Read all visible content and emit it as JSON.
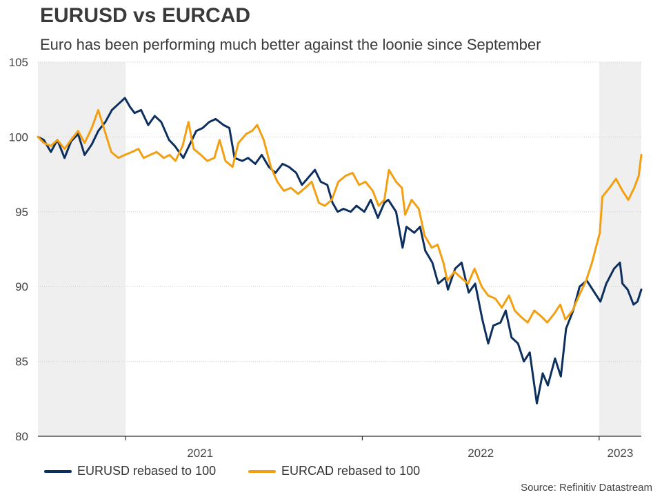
{
  "header": {
    "title": "EURUSD vs EURCAD",
    "subtitle": "Euro has been performing much better against the loonie since September"
  },
  "footer": {
    "source": "Source: Refinitiv Datastream"
  },
  "colors": {
    "eurusd": "#0d2f5e",
    "eurcad": "#f2a012",
    "shade": "#efefef",
    "grid": "#cccccc",
    "axis": "#333333"
  },
  "chart_data": {
    "type": "line",
    "x_unit": "date",
    "xlim": [
      "2020-08-19",
      "2023-03-07"
    ],
    "ylim": [
      80,
      105
    ],
    "yticks": [
      80,
      85,
      90,
      95,
      100,
      105
    ],
    "xticks": [
      {
        "date": "2021-01-01",
        "label": "2021"
      },
      {
        "date": "2022-01-01",
        "label": "2022"
      },
      {
        "date": "2023-01-01",
        "label": "2023"
      }
    ],
    "shaded_ranges": [
      [
        "2020-08-19",
        "2021-01-01"
      ],
      [
        "2023-01-01",
        "2023-03-07"
      ]
    ],
    "grid": "horizontal dotted",
    "legend_position": "bottom-left",
    "series": [
      {
        "name": "EURUSD rebased to 100",
        "color": "#0d2f5e",
        "points": [
          [
            "2020-08-19",
            100.0
          ],
          [
            "2020-08-28",
            99.8
          ],
          [
            "2020-09-08",
            99.0
          ],
          [
            "2020-09-18",
            99.8
          ],
          [
            "2020-09-29",
            98.6
          ],
          [
            "2020-10-09",
            99.7
          ],
          [
            "2020-10-20",
            100.2
          ],
          [
            "2020-10-30",
            98.8
          ],
          [
            "2020-11-10",
            99.5
          ],
          [
            "2020-11-20",
            100.4
          ],
          [
            "2020-12-01",
            101.0
          ],
          [
            "2020-12-11",
            101.8
          ],
          [
            "2020-12-21",
            102.2
          ],
          [
            "2020-12-31",
            102.6
          ],
          [
            "2021-01-08",
            102.0
          ],
          [
            "2021-01-15",
            101.6
          ],
          [
            "2021-01-25",
            101.8
          ],
          [
            "2021-02-05",
            100.8
          ],
          [
            "2021-02-15",
            101.4
          ],
          [
            "2021-02-25",
            101.0
          ],
          [
            "2021-03-09",
            99.8
          ],
          [
            "2021-03-18",
            99.4
          ],
          [
            "2021-03-31",
            98.6
          ],
          [
            "2021-04-09",
            99.4
          ],
          [
            "2021-04-20",
            100.4
          ],
          [
            "2021-04-30",
            100.6
          ],
          [
            "2021-05-10",
            101.0
          ],
          [
            "2021-05-20",
            101.2
          ],
          [
            "2021-06-01",
            100.8
          ],
          [
            "2021-06-10",
            100.6
          ],
          [
            "2021-06-18",
            98.6
          ],
          [
            "2021-06-30",
            98.4
          ],
          [
            "2021-07-09",
            98.6
          ],
          [
            "2021-07-20",
            98.2
          ],
          [
            "2021-07-30",
            98.8
          ],
          [
            "2021-08-10",
            98.0
          ],
          [
            "2021-08-20",
            97.6
          ],
          [
            "2021-08-31",
            98.2
          ],
          [
            "2021-09-10",
            98.0
          ],
          [
            "2021-09-21",
            97.6
          ],
          [
            "2021-09-30",
            96.8
          ],
          [
            "2021-10-08",
            97.2
          ],
          [
            "2021-10-20",
            97.8
          ],
          [
            "2021-10-29",
            97.0
          ],
          [
            "2021-11-08",
            96.8
          ],
          [
            "2021-11-16",
            95.6
          ],
          [
            "2021-11-24",
            95.0
          ],
          [
            "2021-12-03",
            95.2
          ],
          [
            "2021-12-14",
            95.0
          ],
          [
            "2021-12-23",
            95.4
          ],
          [
            "2022-01-04",
            95.0
          ],
          [
            "2022-01-14",
            95.8
          ],
          [
            "2022-01-25",
            94.6
          ],
          [
            "2022-02-04",
            95.6
          ],
          [
            "2022-02-10",
            95.8
          ],
          [
            "2022-02-22",
            95.0
          ],
          [
            "2022-03-04",
            92.6
          ],
          [
            "2022-03-10",
            94.0
          ],
          [
            "2022-03-22",
            93.6
          ],
          [
            "2022-03-31",
            94.0
          ],
          [
            "2022-04-08",
            92.4
          ],
          [
            "2022-04-19",
            91.6
          ],
          [
            "2022-04-28",
            90.2
          ],
          [
            "2022-05-09",
            90.6
          ],
          [
            "2022-05-13",
            89.8
          ],
          [
            "2022-05-24",
            91.2
          ],
          [
            "2022-06-03",
            91.6
          ],
          [
            "2022-06-14",
            89.6
          ],
          [
            "2022-06-24",
            90.2
          ],
          [
            "2022-07-05",
            87.8
          ],
          [
            "2022-07-14",
            86.2
          ],
          [
            "2022-07-22",
            87.4
          ],
          [
            "2022-08-02",
            87.6
          ],
          [
            "2022-08-10",
            88.4
          ],
          [
            "2022-08-19",
            86.6
          ],
          [
            "2022-08-29",
            86.2
          ],
          [
            "2022-09-07",
            85.0
          ],
          [
            "2022-09-16",
            85.6
          ],
          [
            "2022-09-27",
            82.2
          ],
          [
            "2022-10-06",
            84.2
          ],
          [
            "2022-10-14",
            83.4
          ],
          [
            "2022-10-25",
            85.2
          ],
          [
            "2022-11-03",
            84.0
          ],
          [
            "2022-11-11",
            87.2
          ],
          [
            "2022-11-22",
            88.4
          ],
          [
            "2022-12-02",
            90.0
          ],
          [
            "2022-12-13",
            90.4
          ],
          [
            "2022-12-22",
            89.8
          ],
          [
            "2023-01-03",
            89.0
          ],
          [
            "2023-01-12",
            90.2
          ],
          [
            "2023-01-24",
            91.2
          ],
          [
            "2023-02-02",
            91.6
          ],
          [
            "2023-02-06",
            90.2
          ],
          [
            "2023-02-14",
            89.8
          ],
          [
            "2023-02-23",
            88.8
          ],
          [
            "2023-03-01",
            89.0
          ],
          [
            "2023-03-07",
            89.8
          ]
        ]
      },
      {
        "name": "EURCAD rebased to 100",
        "color": "#f2a012",
        "points": [
          [
            "2020-08-19",
            100.0
          ],
          [
            "2020-08-28",
            99.6
          ],
          [
            "2020-09-08",
            99.4
          ],
          [
            "2020-09-18",
            99.8
          ],
          [
            "2020-09-29",
            99.2
          ],
          [
            "2020-10-09",
            99.8
          ],
          [
            "2020-10-20",
            100.4
          ],
          [
            "2020-10-30",
            99.6
          ],
          [
            "2020-11-10",
            100.6
          ],
          [
            "2020-11-20",
            101.8
          ],
          [
            "2020-11-30",
            100.4
          ],
          [
            "2020-12-10",
            99.0
          ],
          [
            "2020-12-21",
            98.6
          ],
          [
            "2020-12-31",
            98.8
          ],
          [
            "2021-01-11",
            99.0
          ],
          [
            "2021-01-21",
            99.2
          ],
          [
            "2021-01-29",
            98.6
          ],
          [
            "2021-02-08",
            98.8
          ],
          [
            "2021-02-18",
            99.0
          ],
          [
            "2021-03-01",
            98.6
          ],
          [
            "2021-03-10",
            98.8
          ],
          [
            "2021-03-19",
            98.4
          ],
          [
            "2021-03-30",
            99.4
          ],
          [
            "2021-04-08",
            101.0
          ],
          [
            "2021-04-16",
            99.2
          ],
          [
            "2021-04-27",
            98.8
          ],
          [
            "2021-05-07",
            98.4
          ],
          [
            "2021-05-18",
            98.6
          ],
          [
            "2021-05-26",
            99.8
          ],
          [
            "2021-06-04",
            98.4
          ],
          [
            "2021-06-15",
            98.0
          ],
          [
            "2021-06-24",
            99.6
          ],
          [
            "2021-07-06",
            100.2
          ],
          [
            "2021-07-15",
            100.4
          ],
          [
            "2021-07-23",
            100.8
          ],
          [
            "2021-08-02",
            99.8
          ],
          [
            "2021-08-13",
            98.0
          ],
          [
            "2021-08-23",
            97.0
          ],
          [
            "2021-09-02",
            96.4
          ],
          [
            "2021-09-13",
            96.6
          ],
          [
            "2021-09-24",
            96.2
          ],
          [
            "2021-10-05",
            96.6
          ],
          [
            "2021-10-15",
            97.0
          ],
          [
            "2021-10-26",
            95.6
          ],
          [
            "2021-11-04",
            95.4
          ],
          [
            "2021-11-15",
            95.8
          ],
          [
            "2021-11-25",
            97.0
          ],
          [
            "2021-12-06",
            97.4
          ],
          [
            "2021-12-17",
            97.6
          ],
          [
            "2021-12-27",
            96.8
          ],
          [
            "2022-01-06",
            97.0
          ],
          [
            "2022-01-17",
            96.4
          ],
          [
            "2022-01-26",
            95.4
          ],
          [
            "2022-02-04",
            95.8
          ],
          [
            "2022-02-11",
            97.8
          ],
          [
            "2022-02-22",
            97.0
          ],
          [
            "2022-03-03",
            96.6
          ],
          [
            "2022-03-08",
            94.8
          ],
          [
            "2022-03-18",
            95.8
          ],
          [
            "2022-03-29",
            95.2
          ],
          [
            "2022-04-07",
            93.4
          ],
          [
            "2022-04-18",
            92.6
          ],
          [
            "2022-04-27",
            92.8
          ],
          [
            "2022-05-06",
            91.6
          ],
          [
            "2022-05-12",
            90.4
          ],
          [
            "2022-05-23",
            91.0
          ],
          [
            "2022-06-02",
            90.6
          ],
          [
            "2022-06-13",
            90.2
          ],
          [
            "2022-06-23",
            91.2
          ],
          [
            "2022-07-04",
            90.0
          ],
          [
            "2022-07-14",
            89.4
          ],
          [
            "2022-07-25",
            89.2
          ],
          [
            "2022-08-04",
            88.6
          ],
          [
            "2022-08-15",
            89.4
          ],
          [
            "2022-08-24",
            88.4
          ],
          [
            "2022-09-02",
            88.0
          ],
          [
            "2022-09-13",
            87.6
          ],
          [
            "2022-09-23",
            88.4
          ],
          [
            "2022-10-04",
            88.0
          ],
          [
            "2022-10-13",
            87.6
          ],
          [
            "2022-10-24",
            88.2
          ],
          [
            "2022-11-02",
            88.8
          ],
          [
            "2022-11-10",
            87.8
          ],
          [
            "2022-11-21",
            88.4
          ],
          [
            "2022-12-01",
            89.4
          ],
          [
            "2022-12-12",
            90.4
          ],
          [
            "2022-12-21",
            91.6
          ],
          [
            "2023-01-02",
            93.6
          ],
          [
            "2023-01-06",
            96.0
          ],
          [
            "2023-01-17",
            96.6
          ],
          [
            "2023-01-27",
            97.2
          ],
          [
            "2023-02-06",
            96.4
          ],
          [
            "2023-02-15",
            95.8
          ],
          [
            "2023-02-24",
            96.6
          ],
          [
            "2023-03-03",
            97.4
          ],
          [
            "2023-03-07",
            98.8
          ]
        ]
      }
    ]
  }
}
